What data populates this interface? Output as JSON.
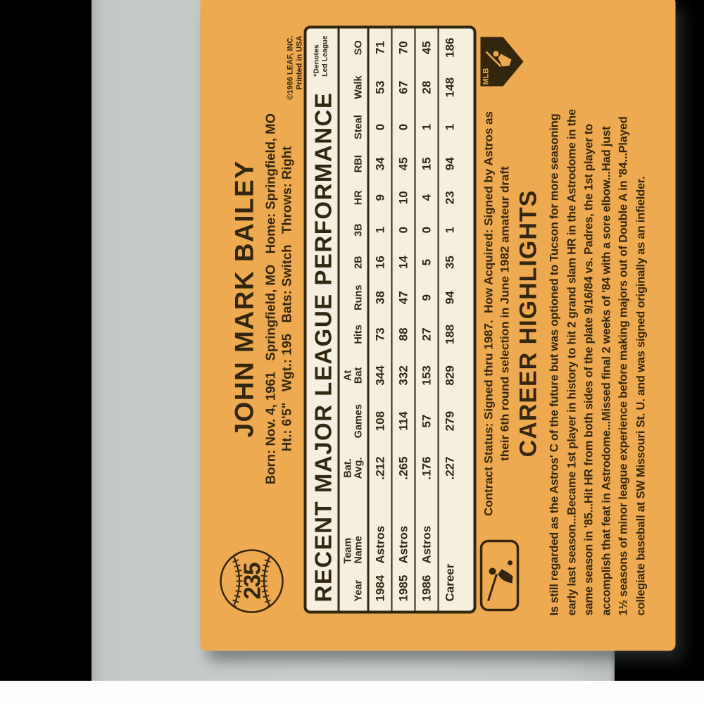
{
  "card": {
    "number": "235",
    "player_name": "JOHN MARK BAILEY",
    "bio_line1": "Born: Nov. 4, 1961   Springfield, MO   Home: Springfield, MO",
    "bio_line2": "Ht.: 6'5\"   Wgt.: 195   Bats: Switch   Throws: Right",
    "copyright_line1": "©1986 LEAF, INC.",
    "copyright_line2": "Printed in USA",
    "stats": {
      "title": "RECENT MAJOR LEAGUE PERFORMANCE",
      "footnote_line1": "*Denotes",
      "footnote_line2": "Led League",
      "columns": [
        [
          "Year"
        ],
        [
          "Team",
          "Name"
        ],
        [
          "Bat.",
          "Avg."
        ],
        [
          "Games"
        ],
        [
          "At",
          "Bat"
        ],
        [
          "Hits"
        ],
        [
          "Runs"
        ],
        [
          "2B"
        ],
        [
          "3B"
        ],
        [
          "HR"
        ],
        [
          "RBI"
        ],
        [
          "Steal"
        ],
        [
          "Walk"
        ],
        [
          "SO"
        ]
      ],
      "rows": [
        [
          "1984",
          "Astros",
          ".212",
          "108",
          "344",
          "73",
          "38",
          "16",
          "1",
          "9",
          "34",
          "0",
          "53",
          "71"
        ],
        [
          "1985",
          "Astros",
          ".265",
          "114",
          "332",
          "88",
          "47",
          "14",
          "0",
          "10",
          "45",
          "0",
          "67",
          "70"
        ],
        [
          "1986",
          "Astros",
          ".176",
          "57",
          "153",
          "27",
          "9",
          "5",
          "0",
          "4",
          "15",
          "1",
          "28",
          "45"
        ],
        [
          "Career",
          "",
          ".227",
          "279",
          "829",
          "188",
          "94",
          "35",
          "1",
          "23",
          "94",
          "1",
          "148",
          "186"
        ]
      ]
    },
    "contract_line1": "Contract Status: Signed thru 1987.  How Acquired: Signed by Astros as",
    "contract_line2": "their 6th round selection in June 1982 amateur draft",
    "career_highlights_title": "CAREER HIGHLIGHTS",
    "career_highlights_lines": [
      "Is still regarded as the Astros' C of the future but was optioned to Tucson for more seasoning",
      "early last season...Became 1st player in history to hit 2 grand slam HR in the Astrodome in the",
      "same season in '85...Hit HR from both sides of the plate 9/16/84 vs. Padres, the 1st player to",
      "accomplish that feat in Astrodome...Missed final 2 weeks of '84 with a sore elbow...Had just",
      "1½ seasons of minor league experience before making majors out of Double A in '84...Played",
      "collegiate baseball at SW Missouri St. U. and was signed originally as an infielder."
    ],
    "mlb_logo_text": "MLB",
    "colors": {
      "ink": "#32260f",
      "card_bg": "#eeaa50",
      "panel_bg": "#f5efe0",
      "photo_bg": "#c8cccb",
      "letterbox": "#000000",
      "page_strip": "#fdfdfd"
    }
  }
}
